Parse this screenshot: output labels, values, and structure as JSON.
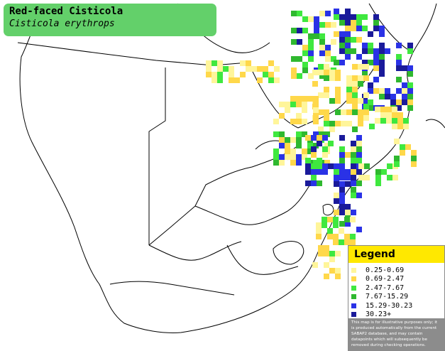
{
  "title": {
    "common_name": "Red-faced Cisticola",
    "scientific_name": "Cisticola erythrops"
  },
  "legend": {
    "heading": "Legend",
    "items": [
      {
        "label": "0.25-0.69",
        "color": "#fff59a"
      },
      {
        "label": "0.69-2.47",
        "color": "#ffd84a"
      },
      {
        "label": "2.47-7.67",
        "color": "#3fe83f"
      },
      {
        "label": "7.67-15.29",
        "color": "#2fb82f"
      },
      {
        "label": "15.29-30.23",
        "color": "#2a32e6"
      },
      {
        "label": "30.23+",
        "color": "#1a1a9a"
      }
    ],
    "disclaimer": "This map is for illustrative purposes only; it is produced automatically from the current SABAP2 database, and may contain datapoints which will subsequently be removed during checking operations."
  }
}
